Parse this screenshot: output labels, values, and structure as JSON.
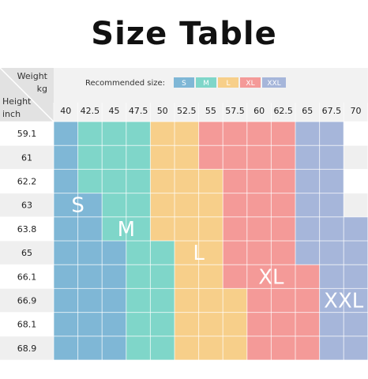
{
  "title": "Size Table",
  "header": {
    "weight_label": "Weight",
    "weight_unit": "kg",
    "height_label": "Height",
    "height_unit": "inch",
    "legend_label": "Recommended size:"
  },
  "legend": [
    {
      "size": "S",
      "color": "#7fb7d6"
    },
    {
      "size": "M",
      "color": "#7fd6c9"
    },
    {
      "size": "L",
      "color": "#f7cf8a"
    },
    {
      "size": "XL",
      "color": "#f49a98"
    },
    {
      "size": "XXL",
      "color": "#a6b6da"
    }
  ],
  "weights": [
    "40",
    "42.5",
    "45",
    "47.5",
    "50",
    "52.5",
    "55",
    "57.5",
    "60",
    "62.5",
    "65",
    "67.5",
    "70"
  ],
  "heights": [
    "59.1",
    "61",
    "62.2",
    "63",
    "63.8",
    "65",
    "66.1",
    "66.9",
    "68.1",
    "68.9"
  ],
  "grid": [
    [
      "S",
      "M",
      "M",
      "M",
      "L",
      "L",
      "XL",
      "XL",
      "XL",
      "XL",
      "XXL",
      "XXL",
      ""
    ],
    [
      "S",
      "M",
      "M",
      "M",
      "L",
      "L",
      "XL",
      "XL",
      "XL",
      "XL",
      "XXL",
      "XXL",
      ""
    ],
    [
      "S",
      "M",
      "M",
      "M",
      "L",
      "L",
      "L",
      "XL",
      "XL",
      "XL",
      "XXL",
      "XXL",
      ""
    ],
    [
      "S",
      "S",
      "M",
      "M",
      "L",
      "L",
      "L",
      "XL",
      "XL",
      "XL",
      "XXL",
      "XXL",
      ""
    ],
    [
      "S",
      "S",
      "M",
      "M",
      "L",
      "L",
      "L",
      "XL",
      "XL",
      "XL",
      "XXL",
      "XXL",
      "XXL"
    ],
    [
      "S",
      "S",
      "S",
      "M",
      "M",
      "L",
      "L",
      "XL",
      "XL",
      "XL",
      "XXL",
      "XXL",
      "XXL"
    ],
    [
      "S",
      "S",
      "S",
      "M",
      "M",
      "L",
      "L",
      "XL",
      "XL",
      "XL",
      "XL",
      "XXL",
      "XXL"
    ],
    [
      "S",
      "S",
      "S",
      "M",
      "M",
      "L",
      "L",
      "L",
      "XL",
      "XL",
      "XL",
      "XXL",
      "XXL"
    ],
    [
      "S",
      "S",
      "S",
      "M",
      "M",
      "L",
      "L",
      "L",
      "XL",
      "XL",
      "XL",
      "XXL",
      "XXL"
    ],
    [
      "S",
      "S",
      "S",
      "M",
      "M",
      "L",
      "L",
      "L",
      "XL",
      "XL",
      "XL",
      "XXL",
      "XXL"
    ]
  ],
  "zone_labels": [
    {
      "size": "S",
      "row": 3,
      "col": 1
    },
    {
      "size": "M",
      "row": 4,
      "col": 3
    },
    {
      "size": "L",
      "row": 5,
      "col": 6
    },
    {
      "size": "XL",
      "row": 6,
      "col": 9
    },
    {
      "size": "XXL",
      "row": 7,
      "col": 12
    }
  ]
}
